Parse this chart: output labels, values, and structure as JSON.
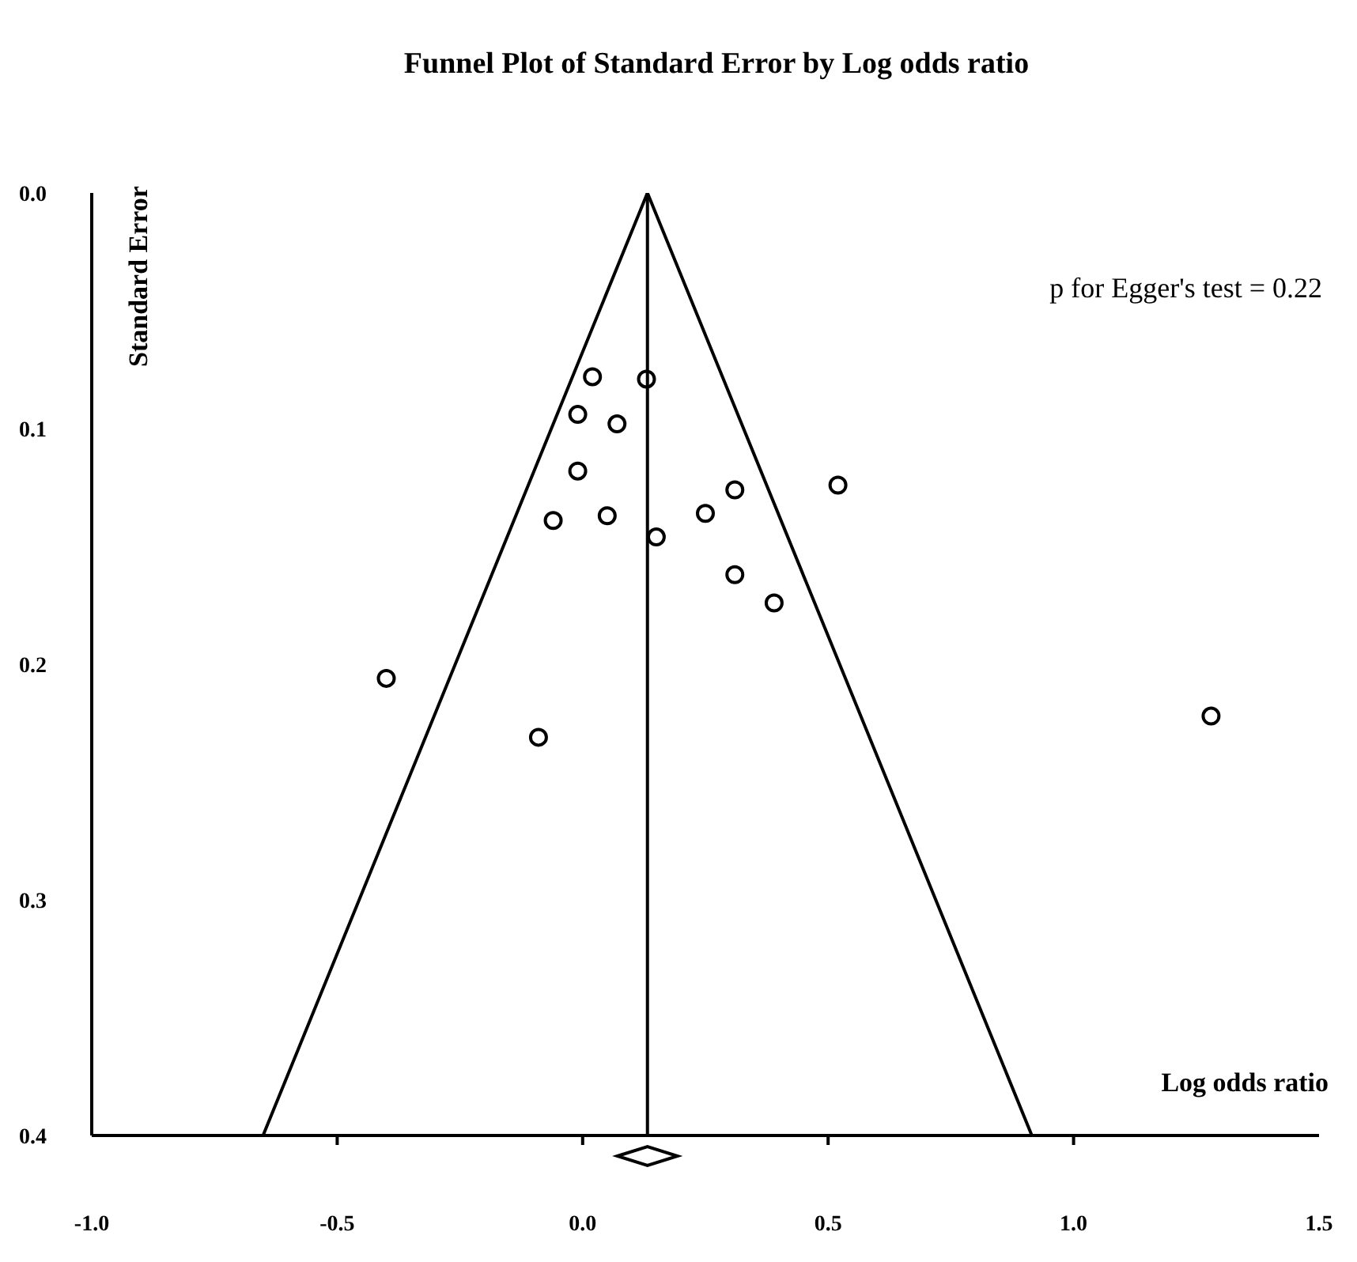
{
  "chart_data": {
    "type": "scatter",
    "title": "Funnel Plot of Standard Error by Log odds ratio",
    "xlabel": "Log odds ratio",
    "ylabel": "Standard Error",
    "annotations": [
      "p for Egger's test = 0.22"
    ],
    "xlim": [
      -1.0,
      1.5
    ],
    "xticks": [
      {
        "value": -1.0,
        "label": "-1.0"
      },
      {
        "value": -0.5,
        "label": "-0.5"
      },
      {
        "value": 0,
        "label": "0.0"
      },
      {
        "value": 0.5,
        "label": "0.5"
      },
      {
        "value": 1.0,
        "label": "1.0"
      },
      {
        "value": 1.5,
        "label": "1.5"
      }
    ],
    "ylim": [
      0.4,
      0.0
    ],
    "yticks": [
      {
        "value": 0,
        "label": "0.0"
      },
      0.1,
      0.2,
      0.3,
      0.4
    ],
    "marker": "circle",
    "ref_lines": [
      {
        "axis": "x",
        "value": 0.132,
        "label": null,
        "color": "#000000"
      }
    ],
    "series": [
      {
        "color": "#000000",
        "x": [
          0.02,
          0.13,
          -0.01,
          0.07,
          -0.01,
          -0.06,
          0.05,
          0.15,
          0.25,
          0.31,
          0.52,
          0.31,
          0.39,
          -0.4,
          -0.09,
          1.28
        ],
        "values": [
          0.078,
          0.079,
          0.094,
          0.098,
          0.118,
          0.139,
          0.137,
          0.146,
          0.136,
          0.126,
          0.124,
          0.162,
          0.174,
          0.206,
          0.231,
          0.222
        ]
      },
      {
        "type": "line",
        "color": "#000000",
        "marker": "none",
        "line_style": "solid",
        "x": [
          -0.651,
          0.132,
          0.915
        ],
        "values": [
          0.4,
          0.0,
          0.4
        ]
      }
    ]
  }
}
